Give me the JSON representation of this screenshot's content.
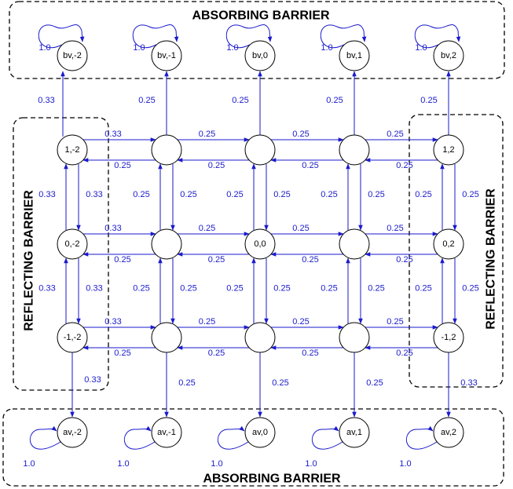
{
  "regions": {
    "top": "ABSORBING BARRIER",
    "bottom": "ABSORBING BARRIER",
    "left": "REFLECTING BARRIER",
    "right": "REFLECTING BARRIER"
  },
  "colors": {
    "edge": "#1a1acc",
    "node_stroke": "#000000"
  },
  "top_absorbing": [
    {
      "label": "bv,-2",
      "loop": "1.0"
    },
    {
      "label": "bv,-1",
      "loop": "1.0"
    },
    {
      "label": "bv,0",
      "loop": "1.0"
    },
    {
      "label": "bv,1",
      "loop": "1.0"
    },
    {
      "label": "bv,2",
      "loop": "1.0"
    }
  ],
  "bottom_absorbing": [
    {
      "label": "av,-2",
      "loop": "1.0"
    },
    {
      "label": "av,-1",
      "loop": "1.0"
    },
    {
      "label": "av,0",
      "loop": "1.0"
    },
    {
      "label": "av,1",
      "loop": "1.0"
    },
    {
      "label": "av,2",
      "loop": "1.0"
    }
  ],
  "grid": [
    [
      "1,-2",
      "",
      "",
      "",
      "1,2"
    ],
    [
      "0,-2",
      "",
      "0,0",
      "",
      "0,2"
    ],
    [
      "-1,-2",
      "",
      "",
      "",
      "-1,2"
    ]
  ],
  "to_top": [
    "0.33",
    "0.25",
    "0.25",
    "0.25",
    "0.25"
  ],
  "to_bottom": [
    "0.33",
    "0.25",
    "0.25",
    "0.25",
    "0.33"
  ],
  "horizontal": [
    {
      "right": [
        "0.33",
        "0.25",
        "0.25",
        "0.25"
      ],
      "left": [
        "0.25",
        "0.25",
        "0.25",
        "0.25"
      ]
    },
    {
      "right": [
        "0.33",
        "0.25",
        "0.25",
        "0.25"
      ],
      "left": [
        "0.25",
        "0.25",
        "0.25",
        "0.25"
      ]
    },
    {
      "right": [
        "0.33",
        "0.25",
        "0.25",
        "0.25"
      ],
      "left": [
        "0.25",
        "0.25",
        "0.25",
        "0.25"
      ]
    }
  ],
  "vertical": [
    {
      "up": [
        "0.33",
        "0.25",
        "0.25",
        "0.25",
        "0.25"
      ],
      "down": [
        "0.33",
        "0.25",
        "0.25",
        "0.25",
        "0.25"
      ]
    },
    {
      "up": [
        "0.33",
        "0.25",
        "0.25",
        "0.25",
        "0.25"
      ],
      "down": [
        "0.33",
        "0.25",
        "0.25",
        "0.25",
        "0.25"
      ]
    }
  ]
}
